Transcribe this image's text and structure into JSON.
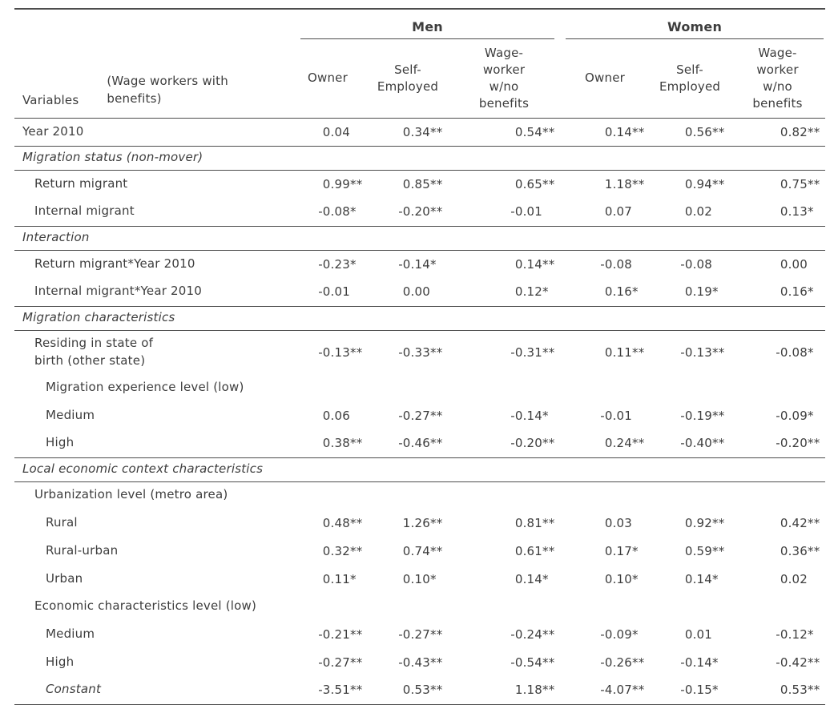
{
  "table": {
    "text_color": "#3d3d3d",
    "line_color": "#4d4d4d",
    "top_header": {
      "groups": [
        {
          "label": "Men"
        },
        {
          "label": "Women"
        }
      ]
    },
    "column_header": {
      "variables_label": "Variables",
      "variables_sublabel": "(Wage workers with benefits)",
      "columns": [
        "Owner",
        "Self-Employed",
        "Wage-worker w/no benefits",
        "Owner",
        "Self-Employed",
        "Wage-worker w/no benefits"
      ]
    },
    "rows": [
      {
        "type": "data",
        "indent": 0,
        "label": "Year 2010",
        "values": [
          "0.04",
          "0.34**",
          "0.54**",
          "0.14**",
          "0.56**",
          "0.82**"
        ],
        "rule_below": true
      },
      {
        "type": "section",
        "label": "Migration status (non-mover)"
      },
      {
        "type": "data",
        "indent": 1,
        "label": "Return migrant",
        "values": [
          "0.99**",
          "0.85**",
          "0.65**",
          "1.18**",
          "0.94**",
          "0.75**"
        ]
      },
      {
        "type": "data",
        "indent": 1,
        "label": "Internal migrant",
        "values": [
          "-0.08*",
          "-0.20**",
          "-0.01",
          "0.07",
          "0.02",
          "0.13*"
        ],
        "rule_below": true
      },
      {
        "type": "section",
        "label": "Interaction"
      },
      {
        "type": "data",
        "indent": 1,
        "label": "Return migrant*Year 2010",
        "values": [
          "-0.23*",
          "-0.14*",
          "0.14**",
          "-0.08",
          "-0.08",
          "0.00"
        ]
      },
      {
        "type": "data",
        "indent": 1,
        "label": "Internal migrant*Year 2010",
        "values": [
          "-0.01",
          "0.00",
          "0.12*",
          "0.16*",
          "0.19*",
          "0.16*"
        ],
        "rule_below": true
      },
      {
        "type": "section",
        "label": "Migration characteristics"
      },
      {
        "type": "data",
        "indent": 1,
        "label": "Residing in state of birth (other state)",
        "two_line": true,
        "values": [
          "-0.13**",
          "-0.33**",
          "-0.31**",
          "0.11**",
          "-0.13**",
          "-0.08*"
        ]
      },
      {
        "type": "group",
        "indent": 2,
        "label": "Migration experience level (low)"
      },
      {
        "type": "data",
        "indent": 2,
        "label": "Medium",
        "values": [
          "0.06",
          "-0.27**",
          "-0.14*",
          "-0.01",
          "-0.19**",
          "-0.09*"
        ]
      },
      {
        "type": "data",
        "indent": 2,
        "label": "High",
        "values": [
          "0.38**",
          "-0.46**",
          "-0.20**",
          "0.24**",
          "-0.40**",
          "-0.20**"
        ],
        "rule_below": true
      },
      {
        "type": "section",
        "label": "Local economic context characteristics"
      },
      {
        "type": "group",
        "indent": 1,
        "label": "Urbanization level (metro area)"
      },
      {
        "type": "data",
        "indent": 2,
        "label": "Rural",
        "values": [
          "0.48**",
          "1.26**",
          "0.81**",
          "0.03",
          "0.92**",
          "0.42**"
        ]
      },
      {
        "type": "data",
        "indent": 2,
        "label": "Rural-urban",
        "values": [
          "0.32**",
          "0.74**",
          "0.61**",
          "0.17*",
          "0.59**",
          "0.36**"
        ]
      },
      {
        "type": "data",
        "indent": 2,
        "label": "Urban",
        "values": [
          "0.11*",
          "0.10*",
          "0.14*",
          "0.10*",
          "0.14*",
          "0.02"
        ]
      },
      {
        "type": "group",
        "indent": 1,
        "label": "Economic characteristics level (low)"
      },
      {
        "type": "data",
        "indent": 2,
        "label": "Medium",
        "values": [
          "-0.21**",
          "-0.27**",
          "-0.24**",
          "-0.09*",
          "0.01",
          "-0.12*"
        ]
      },
      {
        "type": "data",
        "indent": 2,
        "label": "High",
        "values": [
          "-0.27**",
          "-0.43**",
          "-0.54**",
          "-0.26**",
          "-0.14*",
          "-0.42**"
        ]
      },
      {
        "type": "data",
        "indent": 2,
        "label": "Constant",
        "italic": true,
        "values": [
          "-3.51**",
          "0.53**",
          "1.18**",
          "-4.07**",
          "-0.15*",
          "0.53**"
        ],
        "rule_below": true
      }
    ]
  }
}
